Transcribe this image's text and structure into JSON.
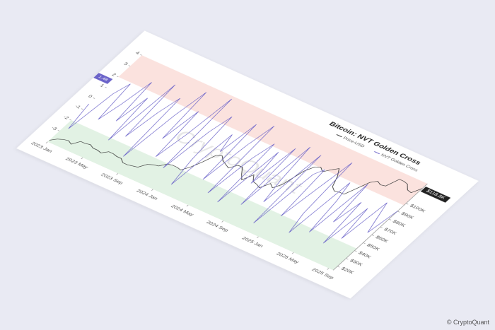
{
  "chart_data": {
    "type": "line",
    "title": "Bitcoin: NVT Golden Cross",
    "watermark": "CryptoQuant",
    "source": "© CryptoQuant",
    "categories": [
      "2023 Jan",
      null,
      null,
      null,
      null,
      null,
      null,
      null,
      "2023 May",
      null,
      null,
      null,
      null,
      null,
      null,
      null,
      "2023 Sep",
      null,
      null,
      null,
      null,
      null,
      null,
      null,
      "2024 Jan",
      null,
      null,
      null,
      null,
      null,
      null,
      null,
      "2024 May",
      null,
      null,
      null,
      null,
      null,
      null,
      null,
      "2024 Sep",
      null,
      null,
      null,
      null,
      null,
      null,
      null,
      "2025 Jan",
      null,
      null,
      null,
      null,
      null,
      null,
      null,
      "2025 May",
      null,
      null,
      null,
      null,
      null,
      null,
      null,
      "2025 Sep",
      null
    ],
    "series": [
      {
        "name": "Price-USD",
        "color": "#333333",
        "axis": "y2",
        "values": [
          17,
          21,
          23,
          24,
          22,
          28,
          28,
          29,
          27,
          27,
          26,
          30,
          30,
          29,
          29,
          26,
          26,
          27,
          28,
          34,
          36,
          37,
          42,
          43,
          43,
          42,
          48,
          57,
          68,
          70,
          66,
          64,
          62,
          68,
          68,
          62,
          57,
          66,
          60,
          59,
          57,
          65,
          62,
          69,
          88,
          96,
          98,
          95,
          100,
          104,
          97,
          86,
          83,
          84,
          84,
          94,
          104,
          108,
          106,
          107,
          118,
          118,
          117,
          112,
          111,
          118.8
        ],
        "value_labels": [
          null,
          null,
          null,
          null,
          null,
          null,
          null,
          null,
          null,
          null,
          null,
          null,
          null,
          null,
          null,
          null,
          null,
          null,
          null,
          null,
          null,
          null,
          null,
          null,
          null,
          null,
          null,
          null,
          null,
          null,
          null,
          null,
          null,
          null,
          null,
          null,
          null,
          null,
          null,
          null,
          null,
          null,
          null,
          null,
          null,
          null,
          null,
          null,
          null,
          null,
          null,
          null,
          null,
          null,
          null,
          null,
          null,
          null,
          null,
          null,
          null,
          null,
          null,
          null,
          null,
          "$118.8K"
        ]
      },
      {
        "name": "NVT Golden Cross",
        "color": "#6b63c9",
        "values": [
          -0.5,
          -2.6,
          0.8,
          1.9,
          -1.2,
          0.4,
          2.6,
          -0.8,
          1.5,
          -2.2,
          3.1,
          -1.5,
          0.9,
          2.4,
          -2.8,
          1.2,
          3.5,
          -0.6,
          2.1,
          -1.9,
          0.3,
          3.8,
          -2.4,
          1.1,
          2.7,
          -1.1,
          -3.2,
          1.6,
          0.2,
          2.9,
          -2.0,
          1.3,
          3.3,
          -2.7,
          0.7,
          2.2,
          -3.0,
          1.8,
          -0.9,
          2.5,
          -2.5,
          3.0,
          0.1,
          -1.7,
          2.8,
          -3.3,
          1.4,
          2.0,
          -2.1,
          0.6,
          3.2,
          -1.3,
          -2.9,
          1.9,
          0.4,
          -2.3,
          2.3,
          -1.0,
          1.0,
          -2.6,
          0.8,
          -1.8,
          1.7,
          0.5,
          -0.7,
          1.48
        ]
      }
    ],
    "ylim": [
      -4,
      4
    ],
    "yticks": [
      -3,
      -2,
      -1,
      0,
      1,
      2,
      3,
      4
    ],
    "y2lim": [
      15,
      125
    ],
    "y2ticks": [
      {
        "value": 20,
        "label": "$20K"
      },
      {
        "value": 30,
        "label": "$30K"
      },
      {
        "value": 40,
        "label": "$40K"
      },
      {
        "value": 50,
        "label": "$50K"
      },
      {
        "value": 60,
        "label": "$60K"
      },
      {
        "value": 70,
        "label": "$70K"
      },
      {
        "value": 80,
        "label": "$80K"
      },
      {
        "value": 90,
        "label": "$90K"
      },
      {
        "value": 100,
        "label": "$100K"
      }
    ],
    "bands": [
      {
        "from": 2,
        "to": 4,
        "color": "#fbe2de"
      },
      {
        "from": -4,
        "to": -2,
        "color": "#e2f2e4"
      }
    ]
  }
}
